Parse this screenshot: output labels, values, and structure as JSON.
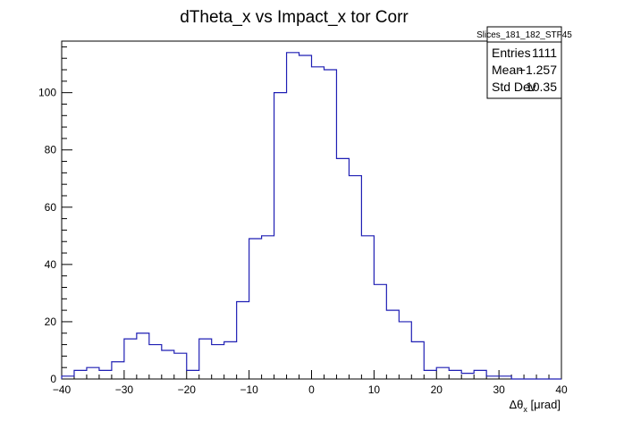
{
  "chart_data": {
    "type": "bar",
    "title": "dTheta_x vs Impact_x tor Corr",
    "xlabel": "Δθ",
    "xlabel_sub": "x",
    "xlabel_unit": " [μrad]",
    "ylabel": "",
    "xlim": [
      -40,
      40
    ],
    "ylim": [
      0,
      118
    ],
    "x_ticks": [
      -40,
      -30,
      -20,
      -10,
      0,
      10,
      20,
      30,
      40
    ],
    "y_ticks": [
      0,
      20,
      40,
      60,
      80,
      100
    ],
    "bin_width": 2,
    "series": [
      {
        "color": "#1f1fb4",
        "bin_edges_start": -40,
        "values": [
          1,
          3,
          4,
          3,
          6,
          14,
          16,
          12,
          10,
          9,
          3,
          14,
          12,
          13,
          27,
          49,
          50,
          100,
          114,
          113,
          109,
          108,
          77,
          71,
          50,
          33,
          24,
          20,
          13,
          3,
          4,
          3,
          2,
          3,
          1,
          1,
          0,
          0,
          0,
          0
        ]
      }
    ],
    "stats_box": {
      "name": "Slices_181_182_STF45",
      "rows": [
        {
          "label": "Entries",
          "value": "1111"
        },
        {
          "label": "Mean",
          "value": "−1.257"
        },
        {
          "label": "Std Dev",
          "value": "10.35"
        }
      ]
    }
  }
}
